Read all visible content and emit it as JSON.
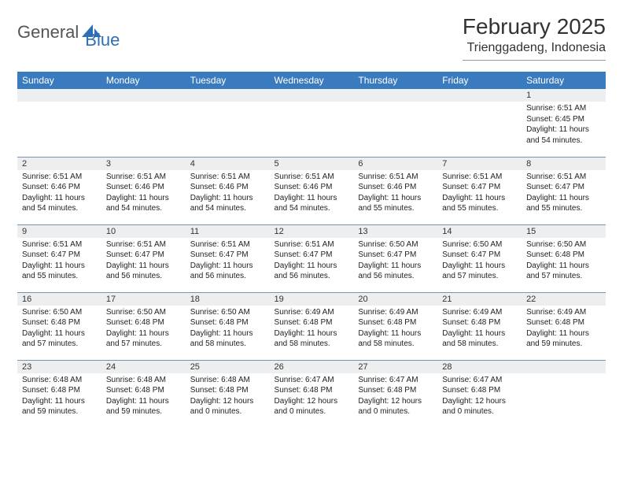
{
  "brand": {
    "part1": "General",
    "part2": "Blue"
  },
  "title": "February 2025",
  "location": "Trienggadeng, Indonesia",
  "colors": {
    "header_bg": "#3a7bbf",
    "daynum_bg": "#eceef0",
    "row_divider": "#7a94ad",
    "brand_gray": "#555555",
    "brand_blue": "#2d6fb5",
    "page_bg": "#ffffff"
  },
  "day_headers": [
    "Sunday",
    "Monday",
    "Tuesday",
    "Wednesday",
    "Thursday",
    "Friday",
    "Saturday"
  ],
  "weeks": [
    [
      {
        "n": "",
        "lines": [
          "",
          "",
          "",
          ""
        ]
      },
      {
        "n": "",
        "lines": [
          "",
          "",
          "",
          ""
        ]
      },
      {
        "n": "",
        "lines": [
          "",
          "",
          "",
          ""
        ]
      },
      {
        "n": "",
        "lines": [
          "",
          "",
          "",
          ""
        ]
      },
      {
        "n": "",
        "lines": [
          "",
          "",
          "",
          ""
        ]
      },
      {
        "n": "",
        "lines": [
          "",
          "",
          "",
          ""
        ]
      },
      {
        "n": "1",
        "lines": [
          "Sunrise: 6:51 AM",
          "Sunset: 6:45 PM",
          "Daylight: 11 hours",
          "and 54 minutes."
        ]
      }
    ],
    [
      {
        "n": "2",
        "lines": [
          "Sunrise: 6:51 AM",
          "Sunset: 6:46 PM",
          "Daylight: 11 hours",
          "and 54 minutes."
        ]
      },
      {
        "n": "3",
        "lines": [
          "Sunrise: 6:51 AM",
          "Sunset: 6:46 PM",
          "Daylight: 11 hours",
          "and 54 minutes."
        ]
      },
      {
        "n": "4",
        "lines": [
          "Sunrise: 6:51 AM",
          "Sunset: 6:46 PM",
          "Daylight: 11 hours",
          "and 54 minutes."
        ]
      },
      {
        "n": "5",
        "lines": [
          "Sunrise: 6:51 AM",
          "Sunset: 6:46 PM",
          "Daylight: 11 hours",
          "and 54 minutes."
        ]
      },
      {
        "n": "6",
        "lines": [
          "Sunrise: 6:51 AM",
          "Sunset: 6:46 PM",
          "Daylight: 11 hours",
          "and 55 minutes."
        ]
      },
      {
        "n": "7",
        "lines": [
          "Sunrise: 6:51 AM",
          "Sunset: 6:47 PM",
          "Daylight: 11 hours",
          "and 55 minutes."
        ]
      },
      {
        "n": "8",
        "lines": [
          "Sunrise: 6:51 AM",
          "Sunset: 6:47 PM",
          "Daylight: 11 hours",
          "and 55 minutes."
        ]
      }
    ],
    [
      {
        "n": "9",
        "lines": [
          "Sunrise: 6:51 AM",
          "Sunset: 6:47 PM",
          "Daylight: 11 hours",
          "and 55 minutes."
        ]
      },
      {
        "n": "10",
        "lines": [
          "Sunrise: 6:51 AM",
          "Sunset: 6:47 PM",
          "Daylight: 11 hours",
          "and 56 minutes."
        ]
      },
      {
        "n": "11",
        "lines": [
          "Sunrise: 6:51 AM",
          "Sunset: 6:47 PM",
          "Daylight: 11 hours",
          "and 56 minutes."
        ]
      },
      {
        "n": "12",
        "lines": [
          "Sunrise: 6:51 AM",
          "Sunset: 6:47 PM",
          "Daylight: 11 hours",
          "and 56 minutes."
        ]
      },
      {
        "n": "13",
        "lines": [
          "Sunrise: 6:50 AM",
          "Sunset: 6:47 PM",
          "Daylight: 11 hours",
          "and 56 minutes."
        ]
      },
      {
        "n": "14",
        "lines": [
          "Sunrise: 6:50 AM",
          "Sunset: 6:47 PM",
          "Daylight: 11 hours",
          "and 57 minutes."
        ]
      },
      {
        "n": "15",
        "lines": [
          "Sunrise: 6:50 AM",
          "Sunset: 6:48 PM",
          "Daylight: 11 hours",
          "and 57 minutes."
        ]
      }
    ],
    [
      {
        "n": "16",
        "lines": [
          "Sunrise: 6:50 AM",
          "Sunset: 6:48 PM",
          "Daylight: 11 hours",
          "and 57 minutes."
        ]
      },
      {
        "n": "17",
        "lines": [
          "Sunrise: 6:50 AM",
          "Sunset: 6:48 PM",
          "Daylight: 11 hours",
          "and 57 minutes."
        ]
      },
      {
        "n": "18",
        "lines": [
          "Sunrise: 6:50 AM",
          "Sunset: 6:48 PM",
          "Daylight: 11 hours",
          "and 58 minutes."
        ]
      },
      {
        "n": "19",
        "lines": [
          "Sunrise: 6:49 AM",
          "Sunset: 6:48 PM",
          "Daylight: 11 hours",
          "and 58 minutes."
        ]
      },
      {
        "n": "20",
        "lines": [
          "Sunrise: 6:49 AM",
          "Sunset: 6:48 PM",
          "Daylight: 11 hours",
          "and 58 minutes."
        ]
      },
      {
        "n": "21",
        "lines": [
          "Sunrise: 6:49 AM",
          "Sunset: 6:48 PM",
          "Daylight: 11 hours",
          "and 58 minutes."
        ]
      },
      {
        "n": "22",
        "lines": [
          "Sunrise: 6:49 AM",
          "Sunset: 6:48 PM",
          "Daylight: 11 hours",
          "and 59 minutes."
        ]
      }
    ],
    [
      {
        "n": "23",
        "lines": [
          "Sunrise: 6:48 AM",
          "Sunset: 6:48 PM",
          "Daylight: 11 hours",
          "and 59 minutes."
        ]
      },
      {
        "n": "24",
        "lines": [
          "Sunrise: 6:48 AM",
          "Sunset: 6:48 PM",
          "Daylight: 11 hours",
          "and 59 minutes."
        ]
      },
      {
        "n": "25",
        "lines": [
          "Sunrise: 6:48 AM",
          "Sunset: 6:48 PM",
          "Daylight: 12 hours",
          "and 0 minutes."
        ]
      },
      {
        "n": "26",
        "lines": [
          "Sunrise: 6:47 AM",
          "Sunset: 6:48 PM",
          "Daylight: 12 hours",
          "and 0 minutes."
        ]
      },
      {
        "n": "27",
        "lines": [
          "Sunrise: 6:47 AM",
          "Sunset: 6:48 PM",
          "Daylight: 12 hours",
          "and 0 minutes."
        ]
      },
      {
        "n": "28",
        "lines": [
          "Sunrise: 6:47 AM",
          "Sunset: 6:48 PM",
          "Daylight: 12 hours",
          "and 0 minutes."
        ]
      },
      {
        "n": "",
        "lines": [
          "",
          "",
          "",
          ""
        ]
      }
    ]
  ]
}
